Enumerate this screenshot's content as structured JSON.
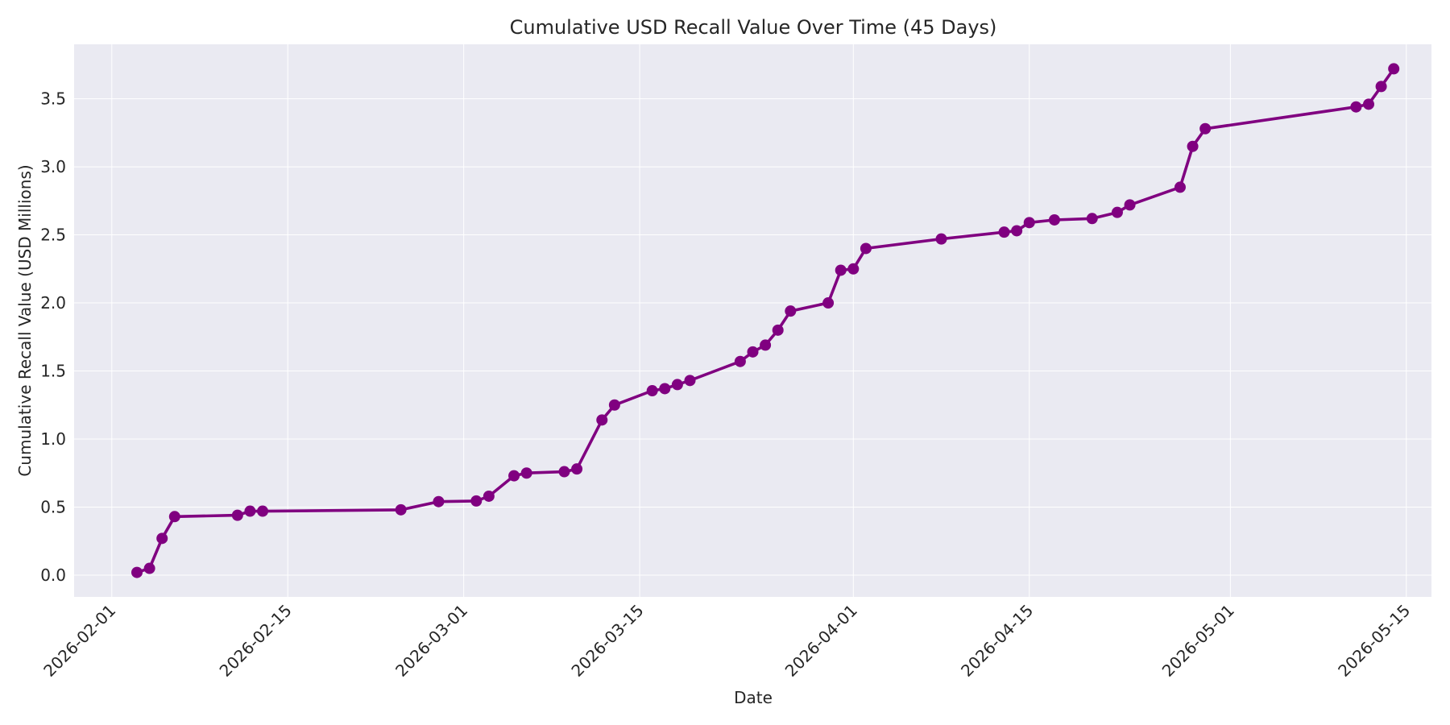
{
  "chart_data": {
    "type": "line",
    "title": "Cumulative USD Recall Value Over Time (45 Days)",
    "xlabel": "Date",
    "ylabel": "Cumulative Recall Value (USD Millions)",
    "xlim": [
      "2026-01-29",
      "2026-05-17"
    ],
    "ylim": [
      -0.16,
      3.9
    ],
    "x_ticks": [
      "2026-02-01",
      "2026-02-15",
      "2026-03-01",
      "2026-03-15",
      "2026-04-01",
      "2026-04-15",
      "2026-05-01",
      "2026-05-15"
    ],
    "y_ticks": [
      0.0,
      0.5,
      1.0,
      1.5,
      2.0,
      2.5,
      3.0,
      3.5
    ],
    "y_tick_labels": [
      "0.0",
      "0.5",
      "1.0",
      "1.5",
      "2.0",
      "2.5",
      "3.0",
      "3.5"
    ],
    "grid": true,
    "colors": {
      "series": "#800080",
      "plot_background": "#eaeaf2",
      "grid": "#ffffff"
    },
    "series": [
      {
        "x": [
          "2026-02-03",
          "2026-02-04",
          "2026-02-05",
          "2026-02-06",
          "2026-02-11",
          "2026-02-12",
          "2026-02-13",
          "2026-02-24",
          "2026-02-27",
          "2026-03-02",
          "2026-03-03",
          "2026-03-05",
          "2026-03-06",
          "2026-03-09",
          "2026-03-10",
          "2026-03-12",
          "2026-03-13",
          "2026-03-16",
          "2026-03-17",
          "2026-03-18",
          "2026-03-19",
          "2026-03-23",
          "2026-03-24",
          "2026-03-25",
          "2026-03-26",
          "2026-03-27",
          "2026-03-30",
          "2026-03-31",
          "2026-04-01",
          "2026-04-02",
          "2026-04-08",
          "2026-04-13",
          "2026-04-14",
          "2026-04-15",
          "2026-04-17",
          "2026-04-20",
          "2026-04-22",
          "2026-04-23",
          "2026-04-27",
          "2026-04-28",
          "2026-04-29",
          "2026-05-11",
          "2026-05-12",
          "2026-05-13",
          "2026-05-14"
        ],
        "y": [
          0.02,
          0.05,
          0.27,
          0.43,
          0.44,
          0.47,
          0.47,
          0.48,
          0.54,
          0.545,
          0.58,
          0.73,
          0.75,
          0.76,
          0.78,
          1.14,
          1.25,
          1.355,
          1.37,
          1.4,
          1.43,
          1.57,
          1.64,
          1.69,
          1.8,
          1.94,
          2.0,
          2.24,
          2.25,
          2.4,
          2.47,
          2.52,
          2.53,
          2.59,
          2.61,
          2.62,
          2.665,
          2.72,
          2.85,
          3.15,
          3.28,
          3.44,
          3.46,
          3.59,
          3.72
        ]
      }
    ]
  }
}
